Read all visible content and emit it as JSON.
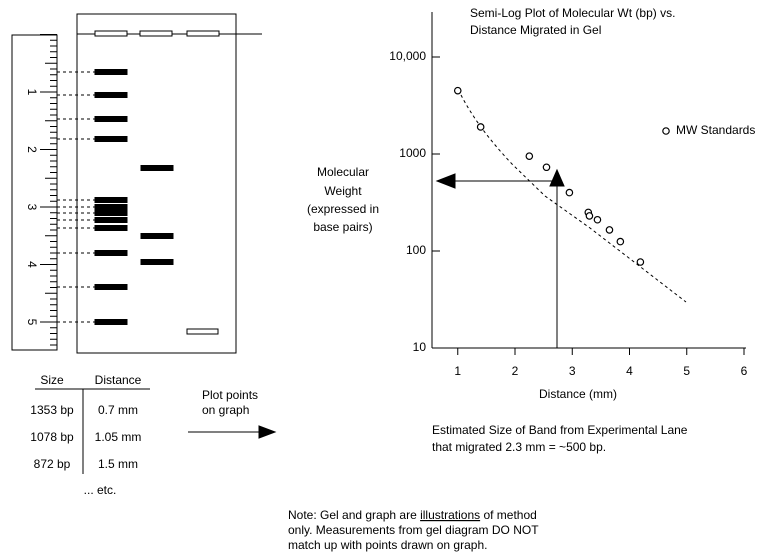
{
  "gel": {
    "ruler_labels": [
      "1",
      "2",
      "3",
      "4",
      "5"
    ]
  },
  "table": {
    "header": [
      "Size",
      "Distance"
    ],
    "rows": [
      [
        "1353 bp",
        "0.7 mm"
      ],
      [
        "1078 bp",
        "1.05 mm"
      ],
      [
        "872 bp",
        "1.5 mm"
      ]
    ],
    "more": "... etc."
  },
  "plot_hint": [
    "Plot points",
    "on graph"
  ],
  "chart_data": {
    "type": "scatter",
    "title": [
      "Semi-Log Plot of Molecular Wt (bp) vs.",
      "Distance Migrated in Gel"
    ],
    "x_label": "Distance (mm)",
    "y_label": [
      "Molecular",
      "Weight",
      "(expressed in",
      "base pairs)"
    ],
    "xlim": [
      0.55,
      6
    ],
    "xticks": [
      1,
      2,
      3,
      4,
      5,
      6
    ],
    "ylim": [
      10,
      10000
    ],
    "yscale": "log",
    "yticks": [
      10,
      100,
      1000,
      {
        "value": 10000,
        "label": "10,000"
      }
    ],
    "legend": "right",
    "series": [
      {
        "name": "MW Standards",
        "color": "#000000",
        "x": [
          1.0,
          1.4,
          2.25,
          2.55,
          2.95,
          3.28,
          3.3,
          3.44,
          3.65,
          3.84,
          4.19
        ],
        "values": [
          4500,
          1900,
          950,
          730,
          400,
          250,
          230,
          210,
          165,
          125,
          77
        ]
      }
    ],
    "caption": [
      "Estimated Size of Band from Experimental Lane",
      "that migrated 2.3 mm = ~500 bp."
    ]
  },
  "note": [
    "Note: Gel and graph are ",
    "illustrations",
    " of method",
    "only. Measurements from gel diagram DO NOT",
    "match up with points drawn on graph."
  ]
}
